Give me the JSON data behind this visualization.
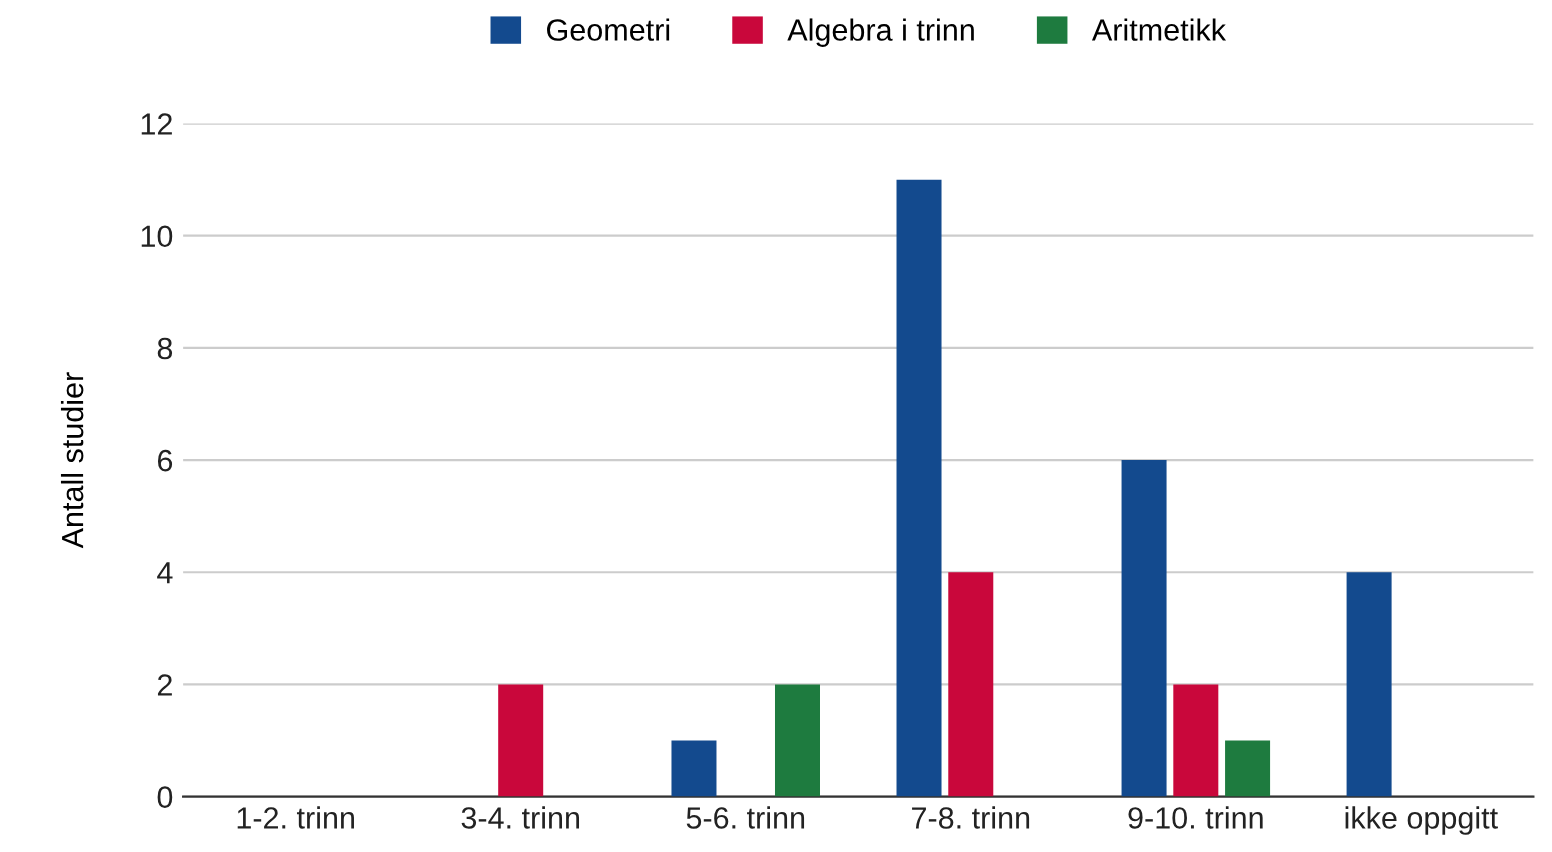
{
  "chart_data": {
    "type": "bar",
    "ylabel": "Antall studier",
    "categories": [
      "1-2. trinn",
      "3-4. trinn",
      "5-6. trinn",
      "7-8. trinn",
      "9-10. trinn",
      "ikke oppgitt"
    ],
    "series": [
      {
        "name": "Geometri",
        "color": "#134a8e",
        "values": [
          0,
          0,
          1,
          11,
          6,
          4
        ]
      },
      {
        "name": "Algebra i trinn",
        "color": "#c9073b",
        "values": [
          0,
          2,
          0,
          4,
          2,
          0
        ]
      },
      {
        "name": "Aritmetikk",
        "color": "#1e7b3f",
        "values": [
          0,
          0,
          2,
          0,
          1,
          0
        ]
      }
    ],
    "ylim": [
      0,
      12
    ],
    "yticks": [
      0,
      2,
      4,
      6,
      8,
      10,
      12
    ],
    "grid": "y",
    "legend": "top"
  }
}
